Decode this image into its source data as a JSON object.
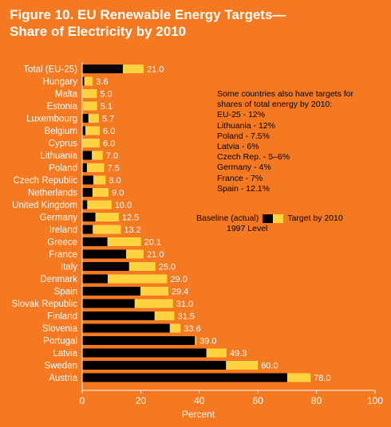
{
  "title": "Figure 10. EU Renewable Energy Targets—\nShare of Electricity by 2010",
  "colors": {
    "background": "#f47920",
    "baseline": "#000000",
    "target": "#ffd23f",
    "text": "#ffffff"
  },
  "note": {
    "heading": "Some countries also have targets for shares of total energy by 2010:",
    "lines": [
      "EU-25 - 12%",
      "Lithuania - 12%",
      "Poland - 7.5%",
      "Latvia - 6%",
      "Czech Rep. - 5–6%",
      "Germany - 4%",
      "France - 7%",
      "Spain - 12.1%"
    ]
  },
  "legend": {
    "baseline": "Baseline (actual)",
    "baseline_sub": "1997 Level",
    "target": "Target by 2010"
  },
  "chart_data": {
    "type": "bar",
    "orientation": "horizontal",
    "stacked": false,
    "xlabel": "Percent",
    "xlim": [
      0,
      100
    ],
    "xticks": [
      0,
      20,
      40,
      60,
      80,
      100
    ],
    "grid": false,
    "legend_position": "center-right",
    "categories": [
      "Total (EU-25)",
      "Hungary",
      "Malta",
      "Estonia",
      "Luxembourg",
      "Belgium",
      "Cyprus",
      "Lithuania",
      "Poland",
      "Czech Republic",
      "Netherlands",
      "United Kingdom",
      "Germany",
      "Ireland",
      "Greece",
      "France",
      "Italy",
      "Denmark",
      "Spain",
      "Slovak Republic",
      "Finland",
      "Slovenia",
      "Portugal",
      "Latvia",
      "Sweden",
      "Austria"
    ],
    "series": [
      {
        "name": "Baseline (actual) 1997 Level",
        "color": "#000000",
        "values": [
          13.9,
          0.7,
          0.0,
          0.2,
          2.1,
          1.1,
          0.05,
          3.3,
          1.6,
          3.8,
          3.5,
          1.7,
          4.5,
          3.6,
          8.6,
          15.0,
          16.0,
          8.7,
          19.9,
          17.9,
          24.7,
          29.9,
          38.5,
          42.4,
          49.1,
          70.0
        ]
      },
      {
        "name": "Target by 2010",
        "color": "#ffd23f",
        "values": [
          21.0,
          3.6,
          5.0,
          5.1,
          5.7,
          6.0,
          6.0,
          7.0,
          7.5,
          8.0,
          9.0,
          10.0,
          12.5,
          13.2,
          20.1,
          21.0,
          25.0,
          29.0,
          29.4,
          31.0,
          31.5,
          33.6,
          39.0,
          49.3,
          60.0,
          78.0
        ]
      }
    ]
  }
}
